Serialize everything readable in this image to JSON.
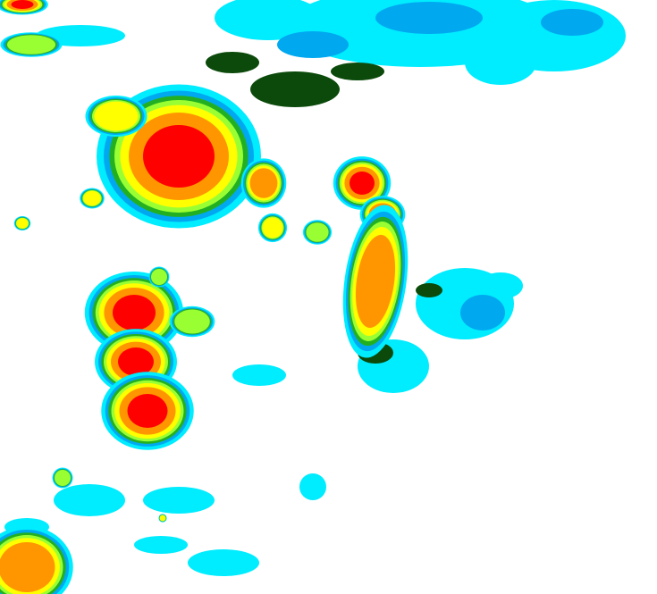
{
  "palette": {
    "background": "#ffffff",
    "cyan": "#00ecff",
    "blue": "#00a8f0",
    "dark_green": "#0b4a0b",
    "green": "#22b022",
    "light_green": "#99ff33",
    "yellow": "#ffff00",
    "orange": "#ff9600",
    "red": "#ff0000"
  }
}
